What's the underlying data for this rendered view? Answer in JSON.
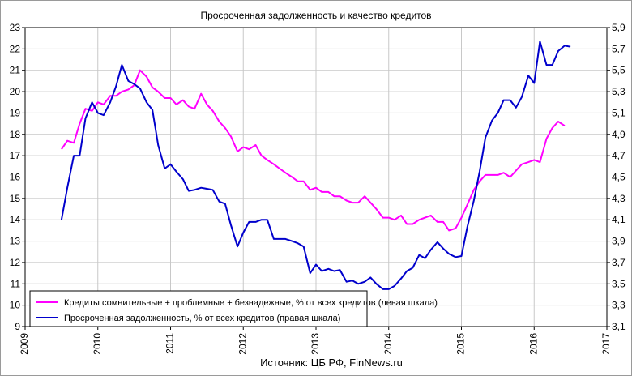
{
  "chart_data": {
    "type": "line",
    "title": "Просроченная задолженность и качество кредитов",
    "source": "Источник: ЦБ РФ, FinNews.ru",
    "x_ticks": [
      "2009",
      "2010",
      "2011",
      "2012",
      "2013",
      "2014",
      "2015",
      "2016",
      "2017"
    ],
    "xlim": [
      2009,
      2017
    ],
    "y_left_ticks": [
      "9",
      "10",
      "11",
      "12",
      "13",
      "14",
      "15",
      "16",
      "17",
      "18",
      "19",
      "20",
      "21",
      "22",
      "23"
    ],
    "ylim_left": [
      9,
      23
    ],
    "y_right_ticks": [
      "3,1",
      "3,3",
      "3,5",
      "3,7",
      "3,9",
      "4,1",
      "4,3",
      "4,5",
      "4,7",
      "4,9",
      "5,1",
      "5,3",
      "5,5",
      "5,7",
      "5,9"
    ],
    "ylim_right": [
      3.1,
      5.9
    ],
    "grid": true,
    "legend_position": "bottom-left",
    "series": [
      {
        "name": "Кредиты сомнительные + проблемные + безнадежные, % от всех  кредитов (левая шкала)",
        "color": "#ff00ff",
        "axis": "left",
        "x": [
          2009.5,
          2009.58,
          2009.67,
          2009.75,
          2009.83,
          2009.92,
          2010.0,
          2010.08,
          2010.17,
          2010.25,
          2010.33,
          2010.42,
          2010.5,
          2010.58,
          2010.67,
          2010.75,
          2010.83,
          2010.92,
          2011.0,
          2011.08,
          2011.17,
          2011.25,
          2011.33,
          2011.42,
          2011.5,
          2011.58,
          2011.67,
          2011.75,
          2011.83,
          2011.92,
          2012.0,
          2012.08,
          2012.17,
          2012.25,
          2012.33,
          2012.42,
          2012.5,
          2012.58,
          2012.67,
          2012.75,
          2012.83,
          2012.92,
          2013.0,
          2013.08,
          2013.17,
          2013.25,
          2013.33,
          2013.42,
          2013.5,
          2013.58,
          2013.67,
          2013.75,
          2013.83,
          2013.92,
          2014.0,
          2014.08,
          2014.17,
          2014.25,
          2014.33,
          2014.42,
          2014.5,
          2014.58,
          2014.67,
          2014.75,
          2014.83,
          2014.92,
          2015.0,
          2015.08,
          2015.17,
          2015.25,
          2015.33,
          2015.42,
          2015.5,
          2015.58,
          2015.67,
          2015.75,
          2015.83,
          2015.92,
          2016.0,
          2016.08,
          2016.17,
          2016.25,
          2016.33,
          2016.42,
          2016.5
        ],
        "values": [
          17.3,
          17.7,
          17.6,
          18.5,
          19.2,
          19.1,
          19.5,
          19.4,
          19.8,
          19.8,
          20.0,
          20.1,
          20.3,
          21.0,
          20.7,
          20.2,
          20.0,
          19.7,
          19.7,
          19.4,
          19.6,
          19.3,
          19.2,
          19.9,
          19.4,
          19.1,
          18.6,
          18.3,
          17.9,
          17.2,
          17.4,
          17.3,
          17.5,
          17.0,
          16.8,
          16.6,
          16.4,
          16.2,
          16.0,
          15.8,
          15.8,
          15.4,
          15.5,
          15.3,
          15.3,
          15.1,
          15.1,
          14.9,
          14.8,
          14.8,
          15.1,
          14.8,
          14.5,
          14.1,
          14.1,
          14.0,
          14.2,
          13.8,
          13.8,
          14.0,
          14.1,
          14.2,
          13.9,
          13.9,
          13.5,
          13.6,
          14.1,
          14.7,
          15.4,
          15.8,
          16.1,
          16.1,
          16.1,
          16.2,
          16.0,
          16.3,
          16.6,
          16.7,
          16.8,
          16.7,
          17.8,
          18.3,
          18.6,
          18.4,
          null
        ]
      },
      {
        "name": "Просроченная задолженность, % от всех  кредитов (правая шкала)",
        "color": "#0000cc",
        "axis": "right",
        "x": [
          2009.5,
          2009.58,
          2009.67,
          2009.75,
          2009.83,
          2009.92,
          2010.0,
          2010.08,
          2010.17,
          2010.25,
          2010.33,
          2010.42,
          2010.5,
          2010.58,
          2010.67,
          2010.75,
          2010.83,
          2010.92,
          2011.0,
          2011.08,
          2011.17,
          2011.25,
          2011.33,
          2011.42,
          2011.5,
          2011.58,
          2011.67,
          2011.75,
          2011.83,
          2011.92,
          2012.0,
          2012.08,
          2012.17,
          2012.25,
          2012.33,
          2012.42,
          2012.5,
          2012.58,
          2012.67,
          2012.75,
          2012.83,
          2012.92,
          2013.0,
          2013.08,
          2013.17,
          2013.25,
          2013.33,
          2013.42,
          2013.5,
          2013.58,
          2013.67,
          2013.75,
          2013.83,
          2013.92,
          2014.0,
          2014.08,
          2014.17,
          2014.25,
          2014.33,
          2014.42,
          2014.5,
          2014.58,
          2014.67,
          2014.75,
          2014.83,
          2014.92,
          2015.0,
          2015.08,
          2015.17,
          2015.25,
          2015.33,
          2015.42,
          2015.5,
          2015.58,
          2015.67,
          2015.75,
          2015.83,
          2015.92,
          2016.0,
          2016.08,
          2016.17,
          2016.25,
          2016.33,
          2016.42,
          2016.5
        ],
        "values": [
          4.1,
          4.4,
          4.7,
          4.7,
          5.05,
          5.2,
          5.1,
          5.08,
          5.2,
          5.35,
          5.55,
          5.4,
          5.37,
          5.33,
          5.2,
          5.13,
          4.8,
          4.58,
          4.62,
          4.55,
          4.48,
          4.37,
          4.38,
          4.4,
          4.39,
          4.38,
          4.27,
          4.25,
          4.05,
          3.85,
          3.98,
          4.08,
          4.08,
          4.1,
          4.1,
          3.92,
          3.92,
          3.92,
          3.9,
          3.88,
          3.85,
          3.6,
          3.68,
          3.62,
          3.64,
          3.62,
          3.63,
          3.52,
          3.53,
          3.5,
          3.52,
          3.56,
          3.5,
          3.45,
          3.45,
          3.48,
          3.55,
          3.62,
          3.65,
          3.77,
          3.74,
          3.82,
          3.89,
          3.83,
          3.78,
          3.75,
          3.76,
          4.03,
          4.28,
          4.55,
          4.87,
          5.03,
          5.1,
          5.22,
          5.22,
          5.15,
          5.25,
          5.45,
          5.38,
          5.77,
          5.55,
          5.55,
          5.68,
          5.73,
          5.72
        ]
      }
    ]
  }
}
